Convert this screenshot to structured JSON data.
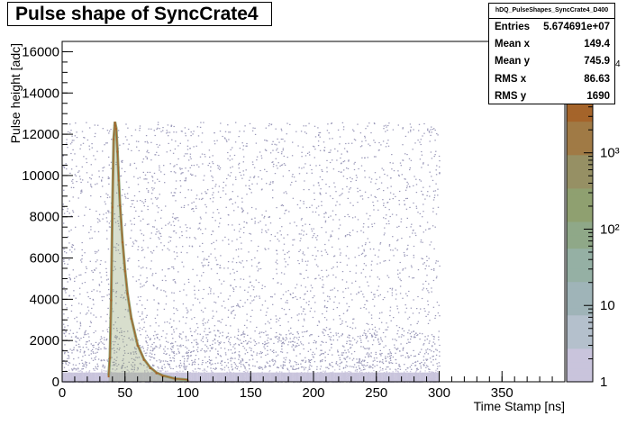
{
  "chart_data": {
    "type": "heatmap",
    "title": "Pulse shape of SyncCrate4",
    "xlabel": "Time Stamp [ns]",
    "ylabel": "Pulse height [adc]",
    "xlim": [
      0,
      400
    ],
    "ylim": [
      0,
      16500
    ],
    "x_ticks": [
      0,
      50,
      100,
      150,
      200,
      250,
      300,
      350
    ],
    "y_ticks": [
      0,
      2000,
      4000,
      6000,
      8000,
      10000,
      12000,
      14000,
      16000
    ],
    "z_scale": "log",
    "z_ticks": [
      {
        "label": "1",
        "value": 1
      },
      {
        "label": "10",
        "value": 10
      },
      {
        "label": "10²",
        "value": 100
      },
      {
        "label": "10³",
        "value": 1000
      }
    ],
    "z_max_label_fragment": "4",
    "data_region": {
      "x_range": [
        0,
        300
      ],
      "y_range": [
        0,
        12600
      ]
    },
    "pulse_profile": {
      "description_free_points_x": [
        37,
        38,
        39,
        40,
        41,
        42,
        43,
        44,
        45,
        46,
        48,
        50,
        52,
        55,
        60,
        65,
        70,
        75,
        80,
        90,
        100
      ],
      "peak_y": [
        300,
        1200,
        4000,
        8500,
        11800,
        12600,
        12300,
        11200,
        9800,
        8600,
        6800,
        5400,
        4300,
        3100,
        1800,
        1100,
        700,
        450,
        300,
        150,
        100
      ]
    }
  },
  "stats": {
    "name": "hDQ_PulseShapes_SyncCrate4_D400",
    "rows": [
      {
        "label": "Entries",
        "value": "5.674691e+07"
      },
      {
        "label": "Mean x",
        "value": "149.4"
      },
      {
        "label": "Mean y",
        "value": "745.9"
      },
      {
        "label": "RMS x",
        "value": "86.63"
      },
      {
        "label": "RMS y",
        "value": "1690"
      }
    ]
  },
  "colors": {
    "background_points": "#9a98b8",
    "low_density": "#c9c4dc",
    "pulse_mid": "#8fa070",
    "pulse_high": "#a5642a",
    "palette_top": "#a0522d"
  }
}
